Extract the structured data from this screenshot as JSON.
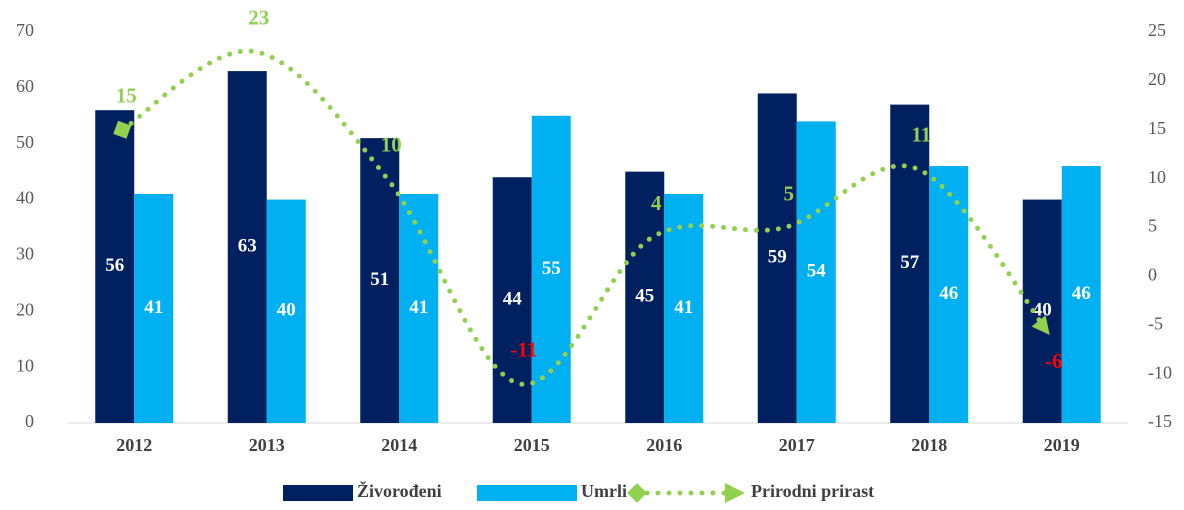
{
  "chart_data": {
    "type": "bar_line",
    "categories": [
      "2012",
      "2013",
      "2014",
      "2015",
      "2016",
      "2017",
      "2018",
      "2019"
    ],
    "series": [
      {
        "name": "Živorođeni",
        "type": "bar",
        "color": "#002060",
        "values": [
          56,
          63,
          51,
          44,
          45,
          59,
          57,
          40
        ]
      },
      {
        "name": "Umrli",
        "type": "bar",
        "color": "#00b0f0",
        "values": [
          41,
          40,
          41,
          55,
          41,
          54,
          46,
          46
        ]
      },
      {
        "name": "Prirodni prirast",
        "type": "line",
        "axis": "y2",
        "color": "#92d050",
        "negative_label_color": "#ff0000",
        "values": [
          15,
          23,
          10,
          -11,
          4,
          5,
          11,
          -6
        ]
      }
    ],
    "ylim": [
      0,
      70
    ],
    "yticks": [
      0,
      10,
      20,
      30,
      40,
      50,
      60,
      70
    ],
    "y2lim": [
      -15,
      25
    ],
    "y2ticks": [
      -15,
      -10,
      -5,
      0,
      5,
      10,
      15,
      20,
      25
    ],
    "grid": false,
    "legend": "bottom"
  }
}
